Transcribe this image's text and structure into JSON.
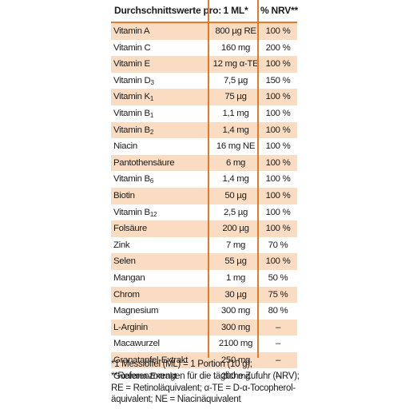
{
  "table": {
    "headers": [
      "Durchschnittswerte pro:",
      "1 ML*",
      "% NRV**"
    ],
    "rows": [
      {
        "name": "Vitamin A",
        "sub": "",
        "amount": "800 µg RE",
        "nrv": "100 %"
      },
      {
        "name": "Vitamin C",
        "sub": "",
        "amount": "160 mg",
        "nrv": "200 %"
      },
      {
        "name": "Vitamin E",
        "sub": "",
        "amount": "12 mg α-TE",
        "nrv": "100 %"
      },
      {
        "name": "Vitamin D",
        "sub": "3",
        "amount": "7,5 µg",
        "nrv": "150 %"
      },
      {
        "name": "Vitamin K",
        "sub": "1",
        "amount": "75 µg",
        "nrv": "100 %"
      },
      {
        "name": "Vitamin B",
        "sub": "1",
        "amount": "1,1 mg",
        "nrv": "100 %"
      },
      {
        "name": "Vitamin B",
        "sub": "2",
        "amount": "1,4 mg",
        "nrv": "100 %"
      },
      {
        "name": "Niacin",
        "sub": "",
        "amount": "16 mg NE",
        "nrv": "100 %"
      },
      {
        "name": "Pantothensäure",
        "sub": "",
        "amount": "6 mg",
        "nrv": "100 %"
      },
      {
        "name": "Vitamin B",
        "sub": "6",
        "amount": "1,4 mg",
        "nrv": "100 %"
      },
      {
        "name": "Biotin",
        "sub": "",
        "amount": "50 µg",
        "nrv": "100 %"
      },
      {
        "name": "Vitamin B",
        "sub": "12",
        "amount": "2,5 µg",
        "nrv": "100 %"
      },
      {
        "name": "Folsäure",
        "sub": "",
        "amount": "200 µg",
        "nrv": "100 %"
      },
      {
        "name": "Zink",
        "sub": "",
        "amount": "7 mg",
        "nrv": "70 %"
      },
      {
        "name": "Selen",
        "sub": "",
        "amount": "55 µg",
        "nrv": "100 %"
      },
      {
        "name": "Mangan",
        "sub": "",
        "amount": "1 mg",
        "nrv": "50 %"
      },
      {
        "name": "Chrom",
        "sub": "",
        "amount": "30 µg",
        "nrv": "75 %"
      },
      {
        "name": "Magnesium",
        "sub": "",
        "amount": "300 mg",
        "nrv": "80 %"
      },
      {
        "name": "L-Arginin",
        "sub": "",
        "amount": "300 mg",
        "nrv": "–"
      },
      {
        "name": "Macawurzel",
        "sub": "",
        "amount": "2100 mg",
        "nrv": "–"
      },
      {
        "name": "Granatapfel-Extrakt",
        "sub": "",
        "amount": "250 mg",
        "nrv": "–"
      },
      {
        "name": "Guarana-Extrakt",
        "sub": "",
        "amount": "200 mg",
        "nrv": "–"
      }
    ]
  },
  "footnotes": [
    "*1 Messlöffel (ML) = 1 Portion (10 g);",
    "**Referenzmengen für die tägliche Zufuhr (NRV);",
    "RE = Retinoläquivalent; α-TE = D-α-Tocopherol-",
    "äquivalent; NE = Niacinäquivalent"
  ],
  "colors": {
    "accent": "#e07b2c",
    "row_shade": "#f9dcc1"
  }
}
